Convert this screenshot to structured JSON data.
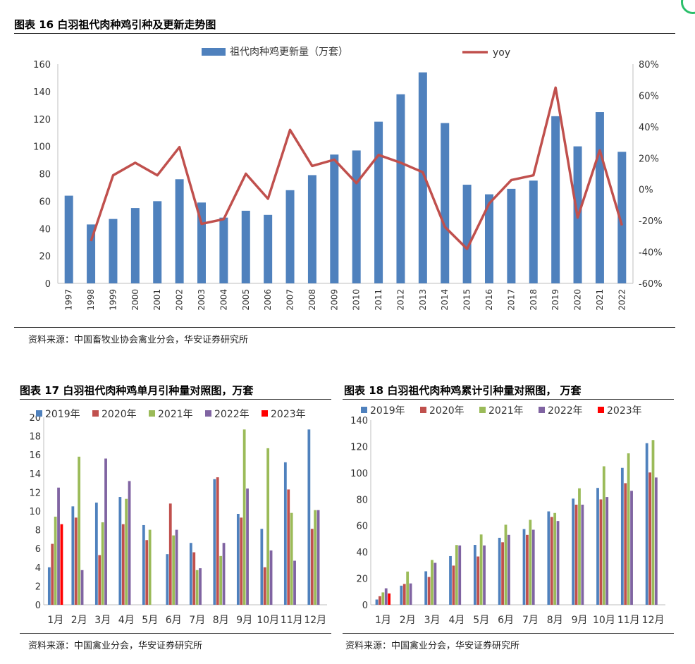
{
  "colors": {
    "bar_blue": "#4f81bd",
    "line_red": "#c0504d",
    "s2019": "#4f81bd",
    "s2020": "#c0504d",
    "s2021": "#9bbb59",
    "s2022": "#8064a2",
    "s2023": "#ff0000"
  },
  "fig16": {
    "title": "图表 16  白羽祖代肉种鸡引种及更新走势图",
    "source": "资料来源：中国畜牧业协会禽业分会，华安证券研究所"
  },
  "fig17": {
    "title": "图表 17  白羽祖代肉种鸡单月引种量对照图，万套",
    "source": "资料来源：中国禽业分会，华安证券研究所"
  },
  "fig18": {
    "title": "图表 18  白羽祖代肉种鸡累计引种量对照图， 万套",
    "source": "资料来源：中国禽业分会，华安证券研究所"
  },
  "chart_data": [
    {
      "id": "fig16",
      "type": "bar",
      "categories": [
        "1997",
        "1998",
        "1999",
        "2000",
        "2001",
        "2002",
        "2003",
        "2004",
        "2005",
        "2006",
        "2007",
        "2008",
        "2009",
        "2010",
        "2011",
        "2012",
        "2013",
        "2014",
        "2015",
        "2016",
        "2017",
        "2018",
        "2019",
        "2020",
        "2021",
        "2022"
      ],
      "series": [
        {
          "name": "祖代肉种鸡更新量（万套）",
          "type": "bar",
          "axis": "left",
          "values": [
            64,
            43,
            47,
            55,
            60,
            76,
            59,
            48,
            53,
            50,
            68,
            79,
            94,
            97,
            118,
            138,
            154,
            117,
            72,
            65,
            69,
            75,
            122,
            100,
            125,
            96
          ]
        },
        {
          "name": "yoy",
          "type": "line",
          "axis": "right",
          "unit": "%",
          "values": [
            null,
            -33,
            9,
            17,
            9,
            27,
            -22,
            -19,
            10,
            -6,
            38,
            15,
            19,
            4,
            22,
            17,
            11,
            -24,
            -38,
            -9,
            6,
            9,
            65,
            -18,
            25,
            -23
          ]
        }
      ],
      "ylim": [
        0,
        160
      ],
      "yticks": [
        0,
        20,
        40,
        60,
        80,
        100,
        120,
        140,
        160
      ],
      "y2lim": [
        -60,
        80
      ],
      "y2ticks": [
        "-60%",
        "-40%",
        "-20%",
        "0%",
        "20%",
        "40%",
        "60%",
        "80%"
      ],
      "legend": "top-center"
    },
    {
      "id": "fig17",
      "type": "bar",
      "categories": [
        "1月",
        "2月",
        "3月",
        "4月",
        "5月",
        "6月",
        "7月",
        "8月",
        "9月",
        "10月",
        "11月",
        "12月"
      ],
      "series": [
        {
          "name": "2019年",
          "values": [
            4.0,
            10.5,
            10.9,
            11.5,
            8.5,
            5.4,
            6.6,
            13.4,
            9.7,
            8.1,
            15.2,
            18.7
          ]
        },
        {
          "name": "2020年",
          "values": [
            6.5,
            9.3,
            5.3,
            8.6,
            6.9,
            10.8,
            5.6,
            13.6,
            9.3,
            4.0,
            12.3,
            8.1
          ]
        },
        {
          "name": "2021年",
          "values": [
            9.4,
            15.8,
            8.8,
            11.3,
            8.0,
            7.4,
            3.7,
            5.2,
            18.7,
            16.7,
            9.8,
            10.1
          ]
        },
        {
          "name": "2022年",
          "values": [
            12.5,
            3.7,
            15.6,
            13.2,
            0,
            8.0,
            3.9,
            6.6,
            12.4,
            5.8,
            4.7,
            10.1
          ]
        },
        {
          "name": "2023年",
          "values": [
            8.6,
            null,
            null,
            null,
            null,
            null,
            null,
            null,
            null,
            null,
            null,
            null
          ]
        }
      ],
      "ylim": [
        0,
        20
      ],
      "yticks": [
        0,
        2,
        4,
        6,
        8,
        10,
        12,
        14,
        16,
        18,
        20
      ],
      "legend": "top"
    },
    {
      "id": "fig18",
      "type": "bar",
      "categories": [
        "1月",
        "2月",
        "3月",
        "4月",
        "5月",
        "6月",
        "7月",
        "8月",
        "9月",
        "10月",
        "11月",
        "12月"
      ],
      "series": [
        {
          "name": "2019年",
          "values": [
            4.0,
            14.5,
            25.4,
            36.9,
            45.4,
            50.8,
            57.4,
            70.8,
            80.5,
            88.6,
            103.8,
            122.5
          ]
        },
        {
          "name": "2020年",
          "values": [
            6.5,
            15.8,
            21.1,
            29.7,
            36.6,
            47.4,
            53.0,
            66.6,
            75.9,
            79.9,
            92.2,
            100.3
          ]
        },
        {
          "name": "2021年",
          "values": [
            9.4,
            25.2,
            34.0,
            45.3,
            53.3,
            60.7,
            64.4,
            69.6,
            88.3,
            105.0,
            114.8,
            124.9
          ]
        },
        {
          "name": "2022年",
          "values": [
            12.5,
            16.2,
            31.8,
            45.0,
            45.0,
            53.0,
            56.9,
            63.5,
            75.9,
            81.7,
            86.4,
            96.5
          ]
        },
        {
          "name": "2023年",
          "values": [
            8.6,
            null,
            null,
            null,
            null,
            null,
            null,
            null,
            null,
            null,
            null,
            null
          ]
        }
      ],
      "ylim": [
        0,
        140
      ],
      "yticks": [
        0,
        20,
        40,
        60,
        80,
        100,
        120,
        140
      ],
      "legend": "top"
    }
  ]
}
